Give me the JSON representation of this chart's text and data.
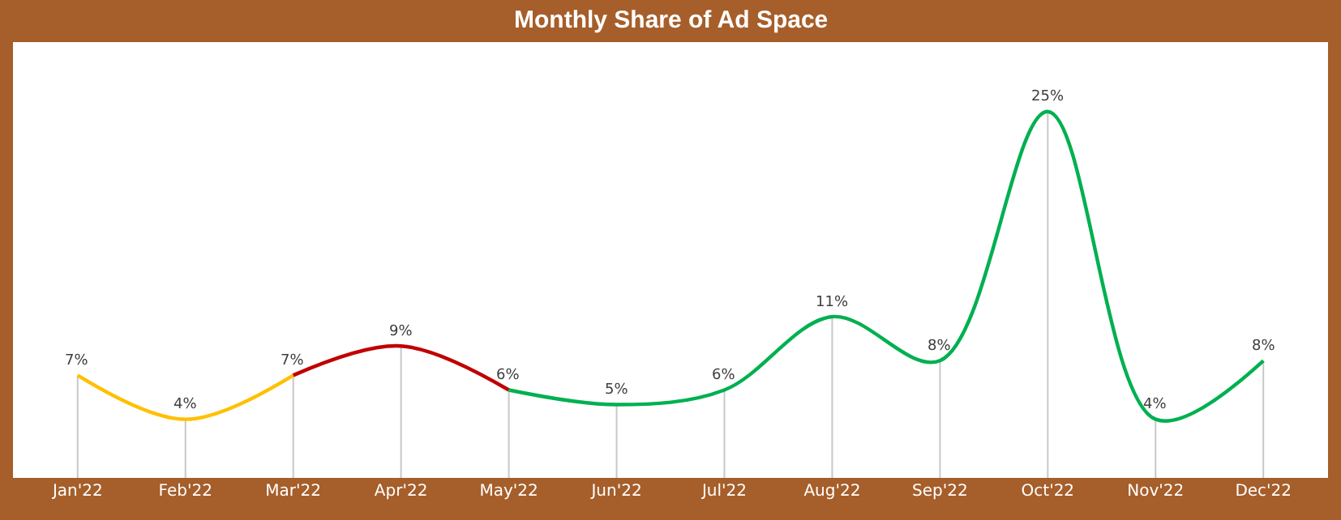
{
  "chart_data": {
    "type": "line",
    "title": "Monthly Share of Ad Space",
    "categories": [
      "Jan'22",
      "Feb'22",
      "Mar'22",
      "Apr'22",
      "May'22",
      "Jun'22",
      "Jul'22",
      "Aug'22",
      "Sep'22",
      "Oct'22",
      "Nov'22",
      "Dec'22"
    ],
    "series": [
      {
        "color": "#ffc000",
        "values": [
          7,
          4,
          7,
          null,
          null,
          null,
          null,
          null,
          null,
          null,
          null,
          null
        ],
        "value_labels": [
          "7%",
          "4%",
          "7%",
          null,
          null,
          null,
          null,
          null,
          null,
          null,
          null,
          null
        ]
      },
      {
        "color": "#c00000",
        "values": [
          null,
          null,
          7,
          9,
          6,
          null,
          null,
          null,
          null,
          null,
          null,
          null
        ],
        "value_labels": [
          null,
          null,
          null,
          "9%",
          "6%",
          null,
          null,
          null,
          null,
          null,
          null,
          null
        ]
      },
      {
        "color": "#00b050",
        "values": [
          null,
          null,
          null,
          null,
          6,
          5,
          6,
          11,
          8,
          25,
          4,
          8
        ],
        "value_labels": [
          null,
          null,
          null,
          null,
          null,
          "5%",
          "6%",
          "11%",
          "8%",
          "25%",
          "4%",
          "8%"
        ]
      }
    ],
    "grid": "x",
    "line_style": "solid"
  }
}
